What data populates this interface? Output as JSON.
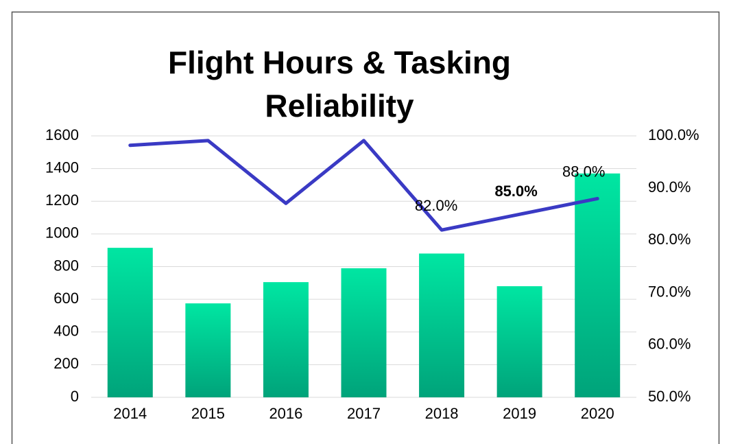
{
  "chart_data": {
    "type": "bar",
    "title": [
      "Flight Hours & Tasking",
      "Reliability"
    ],
    "categories": [
      "2014",
      "2015",
      "2016",
      "2017",
      "2018",
      "2019",
      "2020"
    ],
    "series": [
      {
        "type": "bar",
        "color": "#00e0a0",
        "values": [
          915,
          575,
          705,
          790,
          880,
          680,
          1370
        ]
      },
      {
        "type": "line",
        "axis": "y2",
        "color": "#3a3ac4",
        "values": [
          98.2,
          99.1,
          87.1,
          99.1,
          82.0,
          85.0,
          88.0
        ],
        "value_labels": [
          null,
          null,
          null,
          null,
          "82.0%",
          "85.0%",
          "88.0%"
        ]
      }
    ],
    "ylim": [
      0,
      1600
    ],
    "yticks": [
      0,
      200,
      400,
      600,
      800,
      1000,
      1200,
      1400,
      1600
    ],
    "y2lim": [
      50,
      100
    ],
    "y2ticks": [
      {
        "value": 50,
        "label": "50.0%"
      },
      {
        "value": 60,
        "label": "60.0%"
      },
      {
        "value": 70,
        "label": "70.0%"
      },
      {
        "value": 80,
        "label": "80.0%"
      },
      {
        "value": 90,
        "label": "90.0%"
      },
      {
        "value": 100,
        "label": "100.0%"
      }
    ],
    "grid": true
  }
}
